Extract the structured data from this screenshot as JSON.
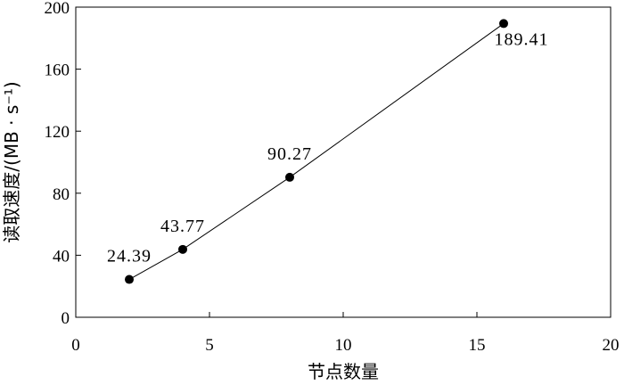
{
  "chart_data": {
    "type": "line",
    "title": "",
    "xlabel": "节点数量",
    "ylabel": "读取速度/(MB · s⁻¹)",
    "xlim": [
      0,
      20
    ],
    "ylim": [
      0,
      200
    ],
    "xticks": [
      0,
      5,
      10,
      15,
      20
    ],
    "yticks": [
      0,
      40,
      80,
      120,
      160,
      200
    ],
    "grid": false,
    "legend": "none",
    "series": [
      {
        "x": [
          2,
          4,
          8,
          16
        ],
        "y": [
          24.39,
          43.77,
          90.27,
          189.41
        ],
        "labels": [
          "24.39",
          "43.77",
          "90.27",
          "189.41"
        ],
        "color": "#000000",
        "marker": "circle"
      }
    ]
  }
}
